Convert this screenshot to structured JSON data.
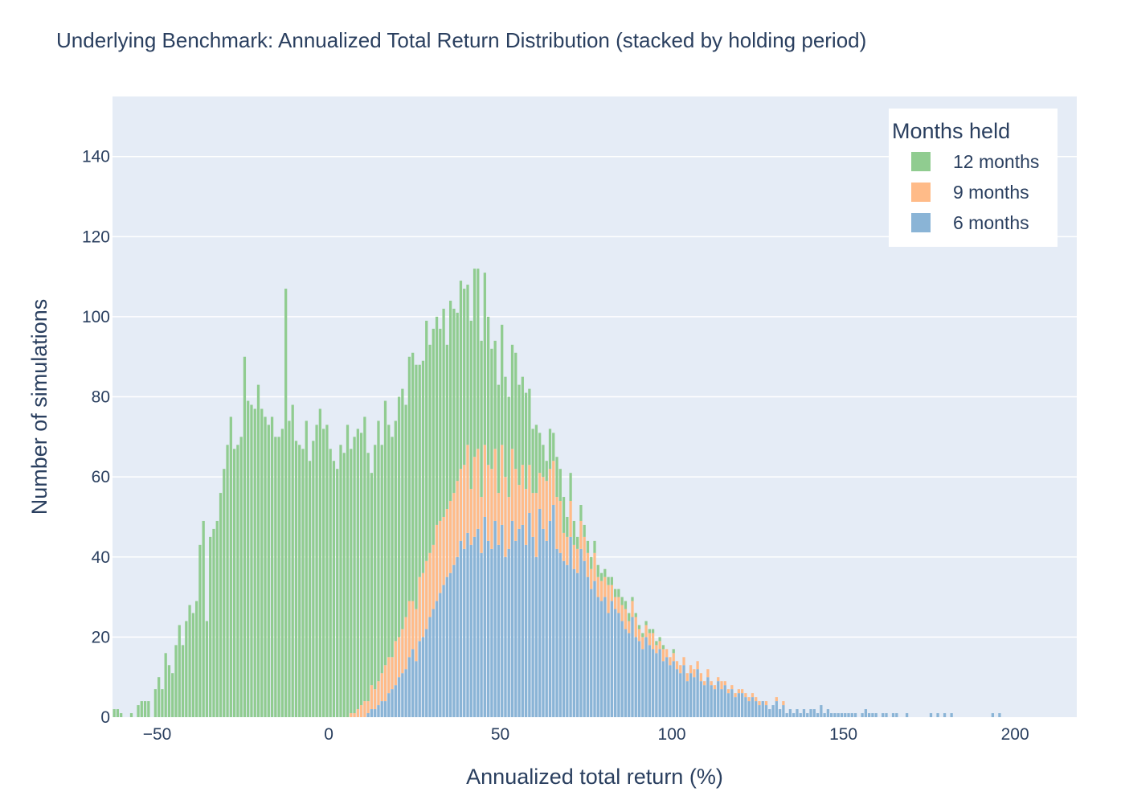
{
  "chart_data": {
    "type": "bar",
    "barmode": "stack",
    "title": "Underlying Benchmark: Annualized Total Return Distribution (stacked by holding period)",
    "xlabel": "Annualized total return (%)",
    "ylabel": "Number of simulations",
    "xlim": [
      -63,
      218
    ],
    "ylim": [
      0,
      155
    ],
    "x_ticks": [
      -50,
      0,
      50,
      100,
      150,
      200
    ],
    "x_tick_labels": [
      "−50",
      "0",
      "50",
      "100",
      "150",
      "200"
    ],
    "y_ticks": [
      0,
      20,
      40,
      60,
      80,
      100,
      120,
      140
    ],
    "y_tick_labels": [
      "0",
      "20",
      "40",
      "60",
      "80",
      "100",
      "120",
      "140"
    ],
    "grid": true,
    "bin_width": 1,
    "legend": {
      "title": "Months held",
      "placement": "top-right",
      "entries": [
        {
          "name": "12 months",
          "color": "#90cc90"
        },
        {
          "name": "9 months",
          "color": "#ffbb88"
        },
        {
          "name": "6 months",
          "color": "#8ab4d6"
        }
      ]
    },
    "series": [
      {
        "name": "12 months",
        "color": "#90cc90",
        "x_start": -63,
        "values": [
          2,
          2,
          1,
          0,
          0,
          1,
          0,
          3,
          4,
          4,
          4,
          0,
          7,
          10,
          7,
          16,
          13,
          11,
          18,
          23,
          18,
          24,
          28,
          26,
          29,
          43,
          49,
          24,
          45,
          47,
          49,
          56,
          62,
          68,
          75,
          67,
          68,
          70,
          90,
          79,
          78,
          77,
          83,
          77,
          75,
          73,
          75,
          70,
          70,
          72,
          107,
          74,
          78,
          69,
          68,
          67,
          74,
          64,
          69,
          73,
          77,
          72,
          73,
          67,
          64,
          62,
          68,
          66,
          73,
          66,
          69,
          70,
          68,
          71,
          62,
          53,
          61,
          65,
          57,
          66,
          58,
          55,
          55,
          60,
          60,
          53,
          61,
          62,
          61,
          53,
          53,
          60,
          52,
          54,
          52,
          48,
          52,
          41,
          50,
          46,
          42,
          47,
          44,
          40,
          42,
          47,
          45,
          39,
          43,
          37,
          30,
          27,
          27,
          30,
          25,
          25,
          26,
          29,
          25,
          22,
          24,
          19,
          16,
          17,
          10,
          8,
          5,
          10,
          7,
          10,
          8,
          9,
          5,
          7,
          6,
          3,
          4,
          3,
          3,
          3,
          3,
          3,
          2,
          2,
          2,
          2,
          2,
          2,
          2,
          2,
          2,
          1,
          1,
          1,
          1,
          1,
          1,
          1,
          1,
          1,
          1,
          0,
          0,
          1,
          0,
          0,
          0,
          0,
          0,
          0,
          0,
          0,
          0,
          0,
          0,
          0,
          0,
          0,
          0,
          0,
          0,
          0,
          0,
          0,
          0,
          0,
          0,
          0,
          0,
          0,
          0,
          0,
          0,
          0,
          0,
          0,
          0,
          0,
          0,
          0,
          0,
          0,
          0,
          0,
          0,
          0,
          0,
          0,
          0,
          0,
          0,
          0,
          0,
          0,
          0,
          0,
          0,
          0,
          0,
          0,
          0,
          0,
          0,
          0,
          0,
          0,
          0,
          0,
          0,
          0,
          0,
          0,
          0,
          0,
          0,
          0,
          0,
          0,
          0,
          0,
          0,
          0,
          0,
          0,
          0,
          0,
          0,
          0,
          0,
          0,
          0,
          0,
          0,
          0,
          0,
          0,
          0,
          0,
          0,
          0,
          0,
          0,
          0,
          0,
          0,
          0,
          0,
          0,
          0,
          0,
          0,
          0,
          0,
          0,
          0,
          0,
          0,
          0,
          0,
          0,
          0,
          0,
          0,
          0,
          0,
          0,
          0,
          0,
          0,
          0,
          0,
          0
        ]
      },
      {
        "name": "9 months",
        "color": "#ffbb88",
        "x_start": -63,
        "values": [
          0,
          0,
          0,
          0,
          0,
          0,
          0,
          0,
          0,
          0,
          0,
          0,
          0,
          0,
          0,
          0,
          0,
          0,
          0,
          0,
          0,
          0,
          0,
          0,
          0,
          0,
          0,
          0,
          0,
          0,
          0,
          0,
          0,
          0,
          0,
          0,
          0,
          0,
          0,
          0,
          0,
          0,
          0,
          0,
          0,
          0,
          0,
          0,
          0,
          0,
          0,
          0,
          0,
          0,
          0,
          0,
          0,
          0,
          0,
          0,
          0,
          0,
          0,
          0,
          0,
          0,
          0,
          0,
          0,
          1,
          1,
          2,
          3,
          4,
          3,
          6,
          5,
          6,
          7,
          9,
          9,
          8,
          11,
          10,
          11,
          13,
          14,
          12,
          13,
          16,
          16,
          17,
          16,
          16,
          19,
          18,
          17,
          17,
          18,
          18,
          19,
          18,
          21,
          22,
          14,
          20,
          20,
          14,
          18,
          19,
          20,
          18,
          13,
          20,
          20,
          13,
          18,
          18,
          11,
          15,
          14,
          12,
          11,
          16,
          9,
          13,
          15,
          13,
          11,
          13,
          13,
          7,
          7,
          9,
          6,
          6,
          7,
          6,
          6,
          5,
          7,
          5,
          5,
          5,
          7,
          4,
          3,
          4,
          4,
          5,
          3,
          4,
          5,
          3,
          3,
          3,
          3,
          4,
          2,
          2,
          3,
          2,
          2,
          2,
          2,
          2,
          2,
          2,
          2,
          2,
          2,
          2,
          1,
          2,
          1,
          1,
          1,
          2,
          1,
          1,
          1,
          1,
          1,
          1,
          1,
          1,
          1,
          1,
          1,
          0,
          1,
          0,
          0,
          1,
          0,
          1,
          0,
          0,
          0,
          0,
          0,
          0,
          0,
          0,
          0,
          0,
          0,
          0,
          0,
          0,
          0,
          0,
          0,
          0,
          0,
          0,
          0,
          0,
          0,
          0,
          0,
          0,
          0,
          0,
          0,
          0,
          0,
          0,
          0,
          0,
          0,
          0,
          0,
          0,
          0,
          0,
          0,
          0,
          0,
          0,
          0,
          0,
          0,
          0,
          0,
          0,
          0,
          0,
          0,
          0,
          0,
          0,
          0,
          0,
          0,
          0,
          0,
          0,
          0,
          0,
          0,
          0,
          0,
          0,
          0,
          0,
          0,
          0,
          0,
          0,
          0,
          0,
          0,
          0,
          0,
          0,
          0,
          0,
          0,
          0,
          0,
          0,
          0,
          0,
          0,
          0,
          0,
          0,
          0
        ]
      },
      {
        "name": "6 months",
        "color": "#8ab4d6",
        "x_start": -63,
        "values": [
          0,
          0,
          0,
          0,
          0,
          0,
          0,
          0,
          0,
          0,
          0,
          0,
          0,
          0,
          0,
          0,
          0,
          0,
          0,
          0,
          0,
          0,
          0,
          0,
          0,
          0,
          0,
          0,
          0,
          0,
          0,
          0,
          0,
          0,
          0,
          0,
          0,
          0,
          0,
          0,
          0,
          0,
          0,
          0,
          0,
          0,
          0,
          0,
          0,
          0,
          0,
          0,
          0,
          0,
          0,
          0,
          0,
          0,
          0,
          0,
          0,
          0,
          0,
          0,
          0,
          0,
          0,
          0,
          0,
          0,
          0,
          0,
          0,
          0,
          1,
          2,
          2,
          3,
          4,
          4,
          6,
          7,
          8,
          10,
          11,
          12,
          15,
          17,
          14,
          19,
          20,
          22,
          25,
          27,
          29,
          31,
          33,
          35,
          36,
          38,
          40,
          44,
          42,
          46,
          43,
          45,
          47,
          41,
          50,
          44,
          42,
          49,
          43,
          48,
          40,
          42,
          49,
          44,
          47,
          48,
          43,
          51,
          45,
          40,
          52,
          47,
          44,
          49,
          53,
          42,
          41,
          39,
          38,
          45,
          37,
          36,
          42,
          39,
          35,
          32,
          34,
          30,
          29,
          30,
          26,
          29,
          27,
          26,
          24,
          22,
          21,
          25,
          20,
          19,
          17,
          20,
          18,
          17,
          16,
          17,
          14,
          15,
          13,
          14,
          12,
          11,
          13,
          9,
          11,
          10,
          12,
          9,
          8,
          10,
          8,
          7,
          9,
          7,
          8,
          6,
          7,
          5,
          6,
          6,
          5,
          4,
          5,
          4,
          3,
          4,
          3,
          2,
          3,
          4,
          2,
          3,
          1,
          2,
          1,
          2,
          1,
          2,
          1,
          2,
          2,
          1,
          3,
          1,
          2,
          1,
          1,
          1,
          1,
          1,
          1,
          1,
          1,
          0,
          1,
          2,
          1,
          1,
          1,
          0,
          1,
          1,
          0,
          1,
          1,
          0,
          0,
          1,
          0,
          0,
          0,
          0,
          0,
          0,
          1,
          0,
          1,
          0,
          1,
          0,
          1,
          0,
          0,
          0,
          0,
          0,
          0,
          0,
          0,
          0,
          0,
          0,
          1,
          0,
          1,
          0,
          0,
          0,
          0,
          0,
          0,
          0,
          0,
          0,
          0,
          0,
          0,
          0,
          0,
          0,
          0,
          0,
          0,
          0,
          0,
          0,
          0,
          0,
          0,
          0,
          0,
          0,
          0,
          0,
          0,
          0
        ]
      }
    ]
  }
}
